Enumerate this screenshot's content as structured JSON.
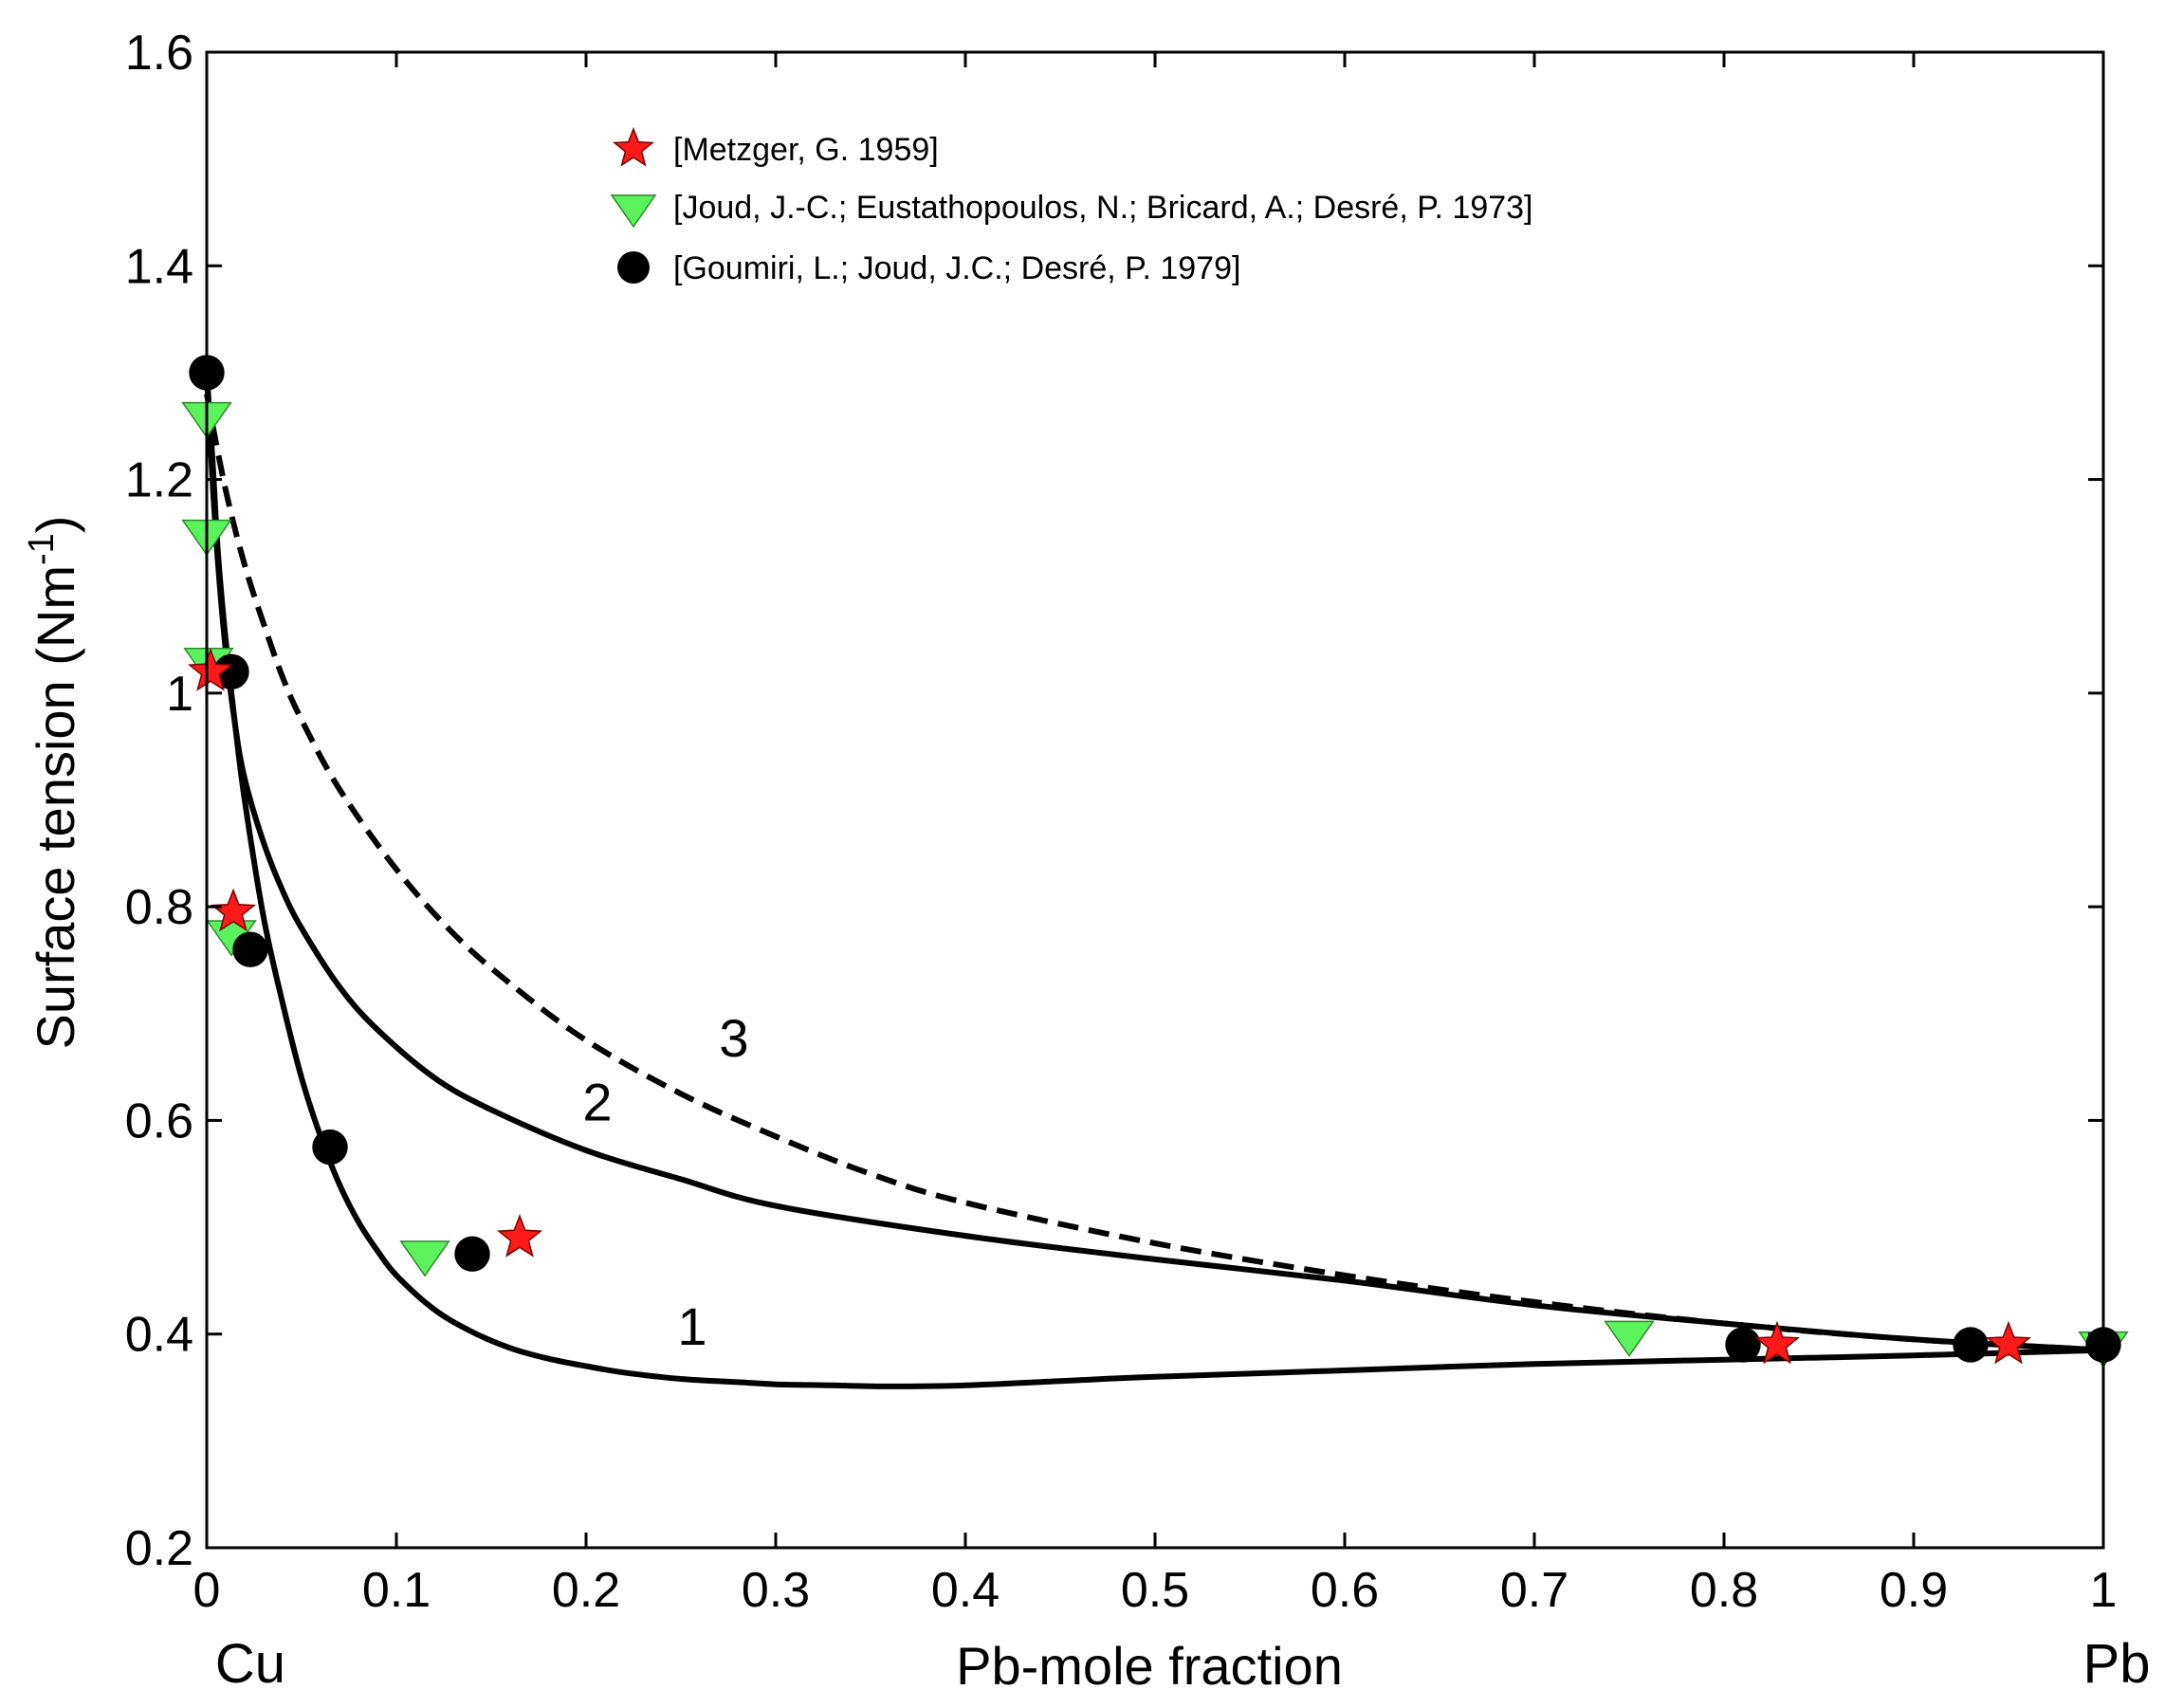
{
  "chart_data": {
    "type": "scatter",
    "title": "",
    "xlabel": "Pb-mole fraction",
    "ylabel_main": "Surface tension (Nm",
    "ylabel_sup": "-1",
    "ylabel_close": ")",
    "xlim": [
      0,
      1
    ],
    "ylim": [
      0.2,
      1.6
    ],
    "xticks": [
      {
        "value": 0,
        "label": "0"
      },
      {
        "value": 0.1,
        "label": "0.1"
      },
      {
        "value": 0.2,
        "label": "0.2"
      },
      {
        "value": 0.3,
        "label": "0.3"
      },
      {
        "value": 0.4,
        "label": "0.4"
      },
      {
        "value": 0.5,
        "label": "0.5"
      },
      {
        "value": 0.6,
        "label": "0.6"
      },
      {
        "value": 0.7,
        "label": "0.7"
      },
      {
        "value": 0.8,
        "label": "0.8"
      },
      {
        "value": 0.9,
        "label": "0.9"
      },
      {
        "value": 1,
        "label": "1"
      }
    ],
    "yticks": [
      {
        "value": 0.2,
        "label": "0.2"
      },
      {
        "value": 0.4,
        "label": "0.4"
      },
      {
        "value": 0.6,
        "label": "0.6"
      },
      {
        "value": 0.8,
        "label": "0.8"
      },
      {
        "value": 1.0,
        "label": "1"
      },
      {
        "value": 1.2,
        "label": "1.2"
      },
      {
        "value": 1.4,
        "label": "1.4"
      },
      {
        "value": 1.6,
        "label": "1.6"
      }
    ],
    "x_end_labels": {
      "left": "Cu",
      "right": "Pb"
    },
    "legend_position": "top-left",
    "grid": false,
    "curves": [
      {
        "name": "1",
        "style": "solid",
        "x": [
          0,
          0.003,
          0.006,
          0.01,
          0.015,
          0.02,
          0.03,
          0.04,
          0.05,
          0.06,
          0.07,
          0.08,
          0.09,
          0.1,
          0.12,
          0.14,
          0.16,
          0.18,
          0.2,
          0.22,
          0.25,
          0.28,
          0.3,
          0.33,
          0.36,
          0.4,
          0.45,
          0.5,
          0.6,
          0.7,
          0.8,
          0.9,
          1.0
        ],
        "y": [
          1.3,
          1.22,
          1.13,
          1.05,
          0.97,
          0.9,
          0.79,
          0.71,
          0.64,
          0.585,
          0.54,
          0.505,
          0.478,
          0.455,
          0.423,
          0.402,
          0.387,
          0.377,
          0.37,
          0.364,
          0.358,
          0.355,
          0.353,
          0.352,
          0.351,
          0.352,
          0.356,
          0.36,
          0.366,
          0.372,
          0.376,
          0.38,
          0.385
        ],
        "label_position": {
          "x": 0.256,
          "y": 0.39
        }
      },
      {
        "name": "2",
        "style": "solid",
        "x": [
          0,
          0.003,
          0.006,
          0.01,
          0.015,
          0.02,
          0.03,
          0.04,
          0.05,
          0.07,
          0.09,
          0.12,
          0.15,
          0.2,
          0.25,
          0.3,
          0.4,
          0.5,
          0.6,
          0.7,
          0.8,
          0.9,
          1.0
        ],
        "y": [
          1.3,
          1.2,
          1.12,
          1.04,
          0.97,
          0.92,
          0.86,
          0.815,
          0.78,
          0.725,
          0.685,
          0.64,
          0.61,
          0.572,
          0.545,
          0.52,
          0.492,
          0.47,
          0.45,
          0.427,
          0.41,
          0.395,
          0.385
        ],
        "label_position": {
          "x": 0.206,
          "y": 0.6
        }
      },
      {
        "name": "3",
        "style": "dashed",
        "x": [
          0,
          0.01,
          0.02,
          0.03,
          0.04,
          0.05,
          0.07,
          0.1,
          0.13,
          0.16,
          0.2,
          0.25,
          0.3,
          0.35,
          0.4,
          0.5,
          0.6,
          0.7,
          0.8,
          0.9,
          1.0
        ],
        "y": [
          1.28,
          1.19,
          1.12,
          1.065,
          1.015,
          0.975,
          0.91,
          0.835,
          0.775,
          0.728,
          0.675,
          0.625,
          0.585,
          0.55,
          0.523,
          0.485,
          0.455,
          0.43,
          0.41,
          0.395,
          0.385
        ],
        "label_position": {
          "x": 0.278,
          "y": 0.66
        }
      }
    ],
    "series": [
      {
        "name": "[Metzger, G. 1959]",
        "marker": "star",
        "color": "#ff1a1a",
        "x": [
          0.002,
          0.014,
          0.165,
          0.828,
          0.95
        ],
        "y": [
          1.02,
          0.795,
          0.49,
          0.39,
          0.39
        ]
      },
      {
        "name": "[Joud, J.-C.; Eustathopoulos, N.; Bricard, A.; Desré, P. 1973]",
        "marker": "triangle-down",
        "color": "#5cf25c",
        "x": [
          0,
          0,
          0.001,
          0.013,
          0.115,
          0.75,
          1.0
        ],
        "y": [
          1.26,
          1.15,
          1.03,
          0.775,
          0.475,
          0.4,
          0.39
        ]
      },
      {
        "name": "[Goumiri, L.; Joud, J.C.; Desré, P. 1979]",
        "marker": "circle",
        "color": "#000000",
        "x": [
          0,
          0.013,
          0.023,
          0.065,
          0.14,
          0.81,
          0.93,
          1.0
        ],
        "y": [
          1.3,
          1.02,
          0.76,
          0.575,
          0.475,
          0.39,
          0.39,
          0.39
        ]
      }
    ]
  }
}
